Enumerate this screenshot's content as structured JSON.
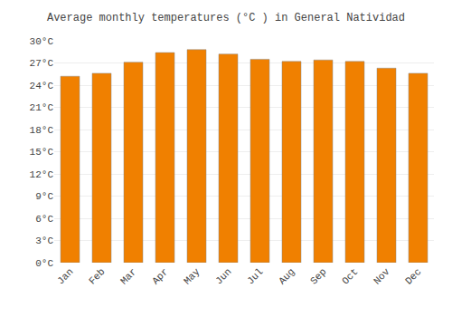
{
  "chart_data": {
    "type": "bar",
    "title": "Average monthly temperatures (°C ) in General Natividad",
    "categories": [
      "Jan",
      "Feb",
      "Mar",
      "Apr",
      "May",
      "Jun",
      "Jul",
      "Aug",
      "Sep",
      "Oct",
      "Nov",
      "Dec"
    ],
    "values": [
      25.2,
      25.6,
      27.1,
      28.4,
      28.8,
      28.2,
      27.5,
      27.2,
      27.4,
      27.2,
      26.3,
      25.6
    ],
    "color": "#F08000",
    "ylim": [
      0,
      30
    ],
    "yticks": [
      {
        "value": 0,
        "label": "0°C"
      },
      {
        "value": 3,
        "label": "3°C"
      },
      {
        "value": 6,
        "label": "6°C"
      },
      {
        "value": 9,
        "label": "9°C"
      },
      {
        "value": 12,
        "label": "12°C"
      },
      {
        "value": 15,
        "label": "15°C"
      },
      {
        "value": 18,
        "label": "18°C"
      },
      {
        "value": 21,
        "label": "21°C"
      },
      {
        "value": 24,
        "label": "24°C"
      },
      {
        "value": 27,
        "label": "27°C"
      },
      {
        "value": 30,
        "label": "30°C"
      }
    ],
    "grid": true
  }
}
